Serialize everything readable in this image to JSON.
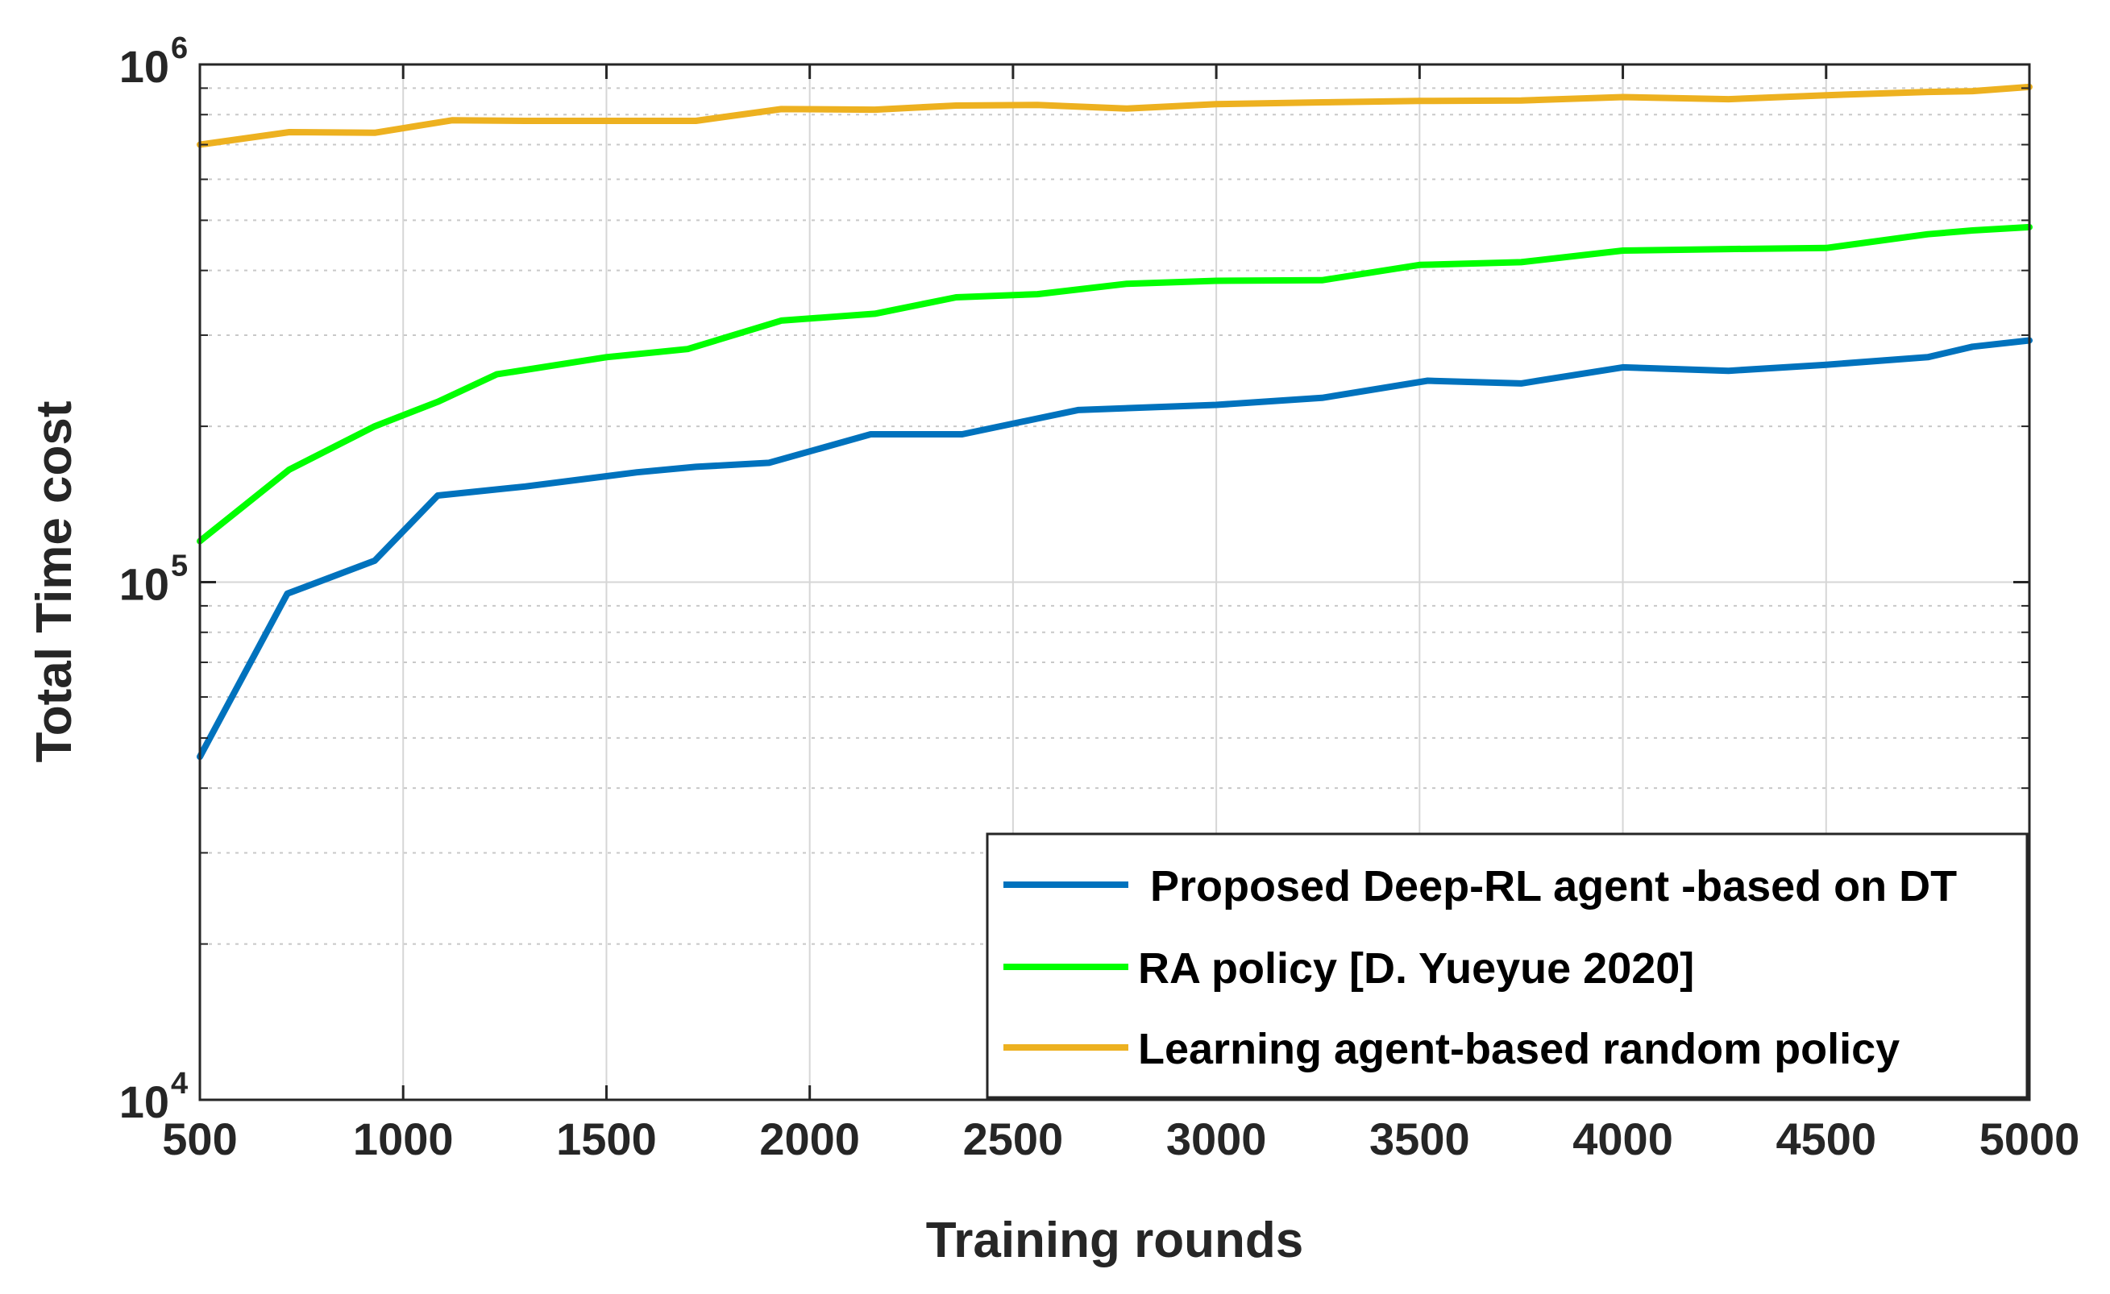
{
  "chart_data": {
    "type": "line",
    "title": "",
    "xlabel": "Training rounds",
    "ylabel": "Total Time cost",
    "xlim": [
      500,
      5000
    ],
    "ylim": [
      10000,
      1000000
    ],
    "yscale": "log",
    "grid": true,
    "legend_position": "bottom-right",
    "xticks": [
      "500",
      "1000",
      "1500",
      "2000",
      "2500",
      "3000",
      "3500",
      "4000",
      "4500",
      "5000"
    ],
    "yticks": [
      {
        "base": "10",
        "exp": "4"
      },
      {
        "base": "10",
        "exp": "5"
      },
      {
        "base": "10",
        "exp": "6"
      }
    ],
    "series": [
      {
        "name": " Proposed Deep-RL agent -based on DT",
        "color": "#0072BD",
        "x": [
          500,
          715,
          930,
          1085,
          1300,
          1575,
          1720,
          1900,
          2150,
          2375,
          2660,
          3000,
          3260,
          3520,
          3750,
          4000,
          4260,
          4500,
          4750,
          4860,
          5000
        ],
        "y": [
          46000,
          95000,
          110000,
          147000,
          153000,
          163000,
          167000,
          170000,
          193000,
          193000,
          215000,
          220000,
          227000,
          245000,
          242000,
          260000,
          256000,
          263000,
          272000,
          285000,
          293000
        ]
      },
      {
        "name": "RA policy [D. Yueyue 2020]",
        "color": "#00FF00",
        "x": [
          500,
          720,
          930,
          1085,
          1230,
          1500,
          1700,
          1930,
          2160,
          2360,
          2560,
          2780,
          3000,
          3260,
          3500,
          3750,
          4000,
          4260,
          4500,
          4750,
          4860,
          5000
        ],
        "y": [
          120000,
          165000,
          200000,
          223000,
          252000,
          272000,
          282000,
          320000,
          330000,
          355000,
          360000,
          377000,
          382000,
          383000,
          410000,
          415000,
          437000,
          440000,
          442000,
          470000,
          478000,
          485000
        ]
      },
      {
        "name": "Learning agent-based random policy",
        "color": "#EDB120",
        "x": [
          500,
          720,
          930,
          1120,
          1300,
          1720,
          1930,
          2160,
          2360,
          2560,
          2780,
          3000,
          3260,
          3500,
          3750,
          4000,
          4260,
          4500,
          4750,
          4860,
          5000
        ],
        "y": [
          700000,
          740000,
          738000,
          780000,
          778000,
          778000,
          820000,
          818000,
          833000,
          835000,
          822000,
          838000,
          845000,
          850000,
          852000,
          865000,
          857000,
          872000,
          885000,
          888000,
          905000
        ]
      }
    ]
  }
}
